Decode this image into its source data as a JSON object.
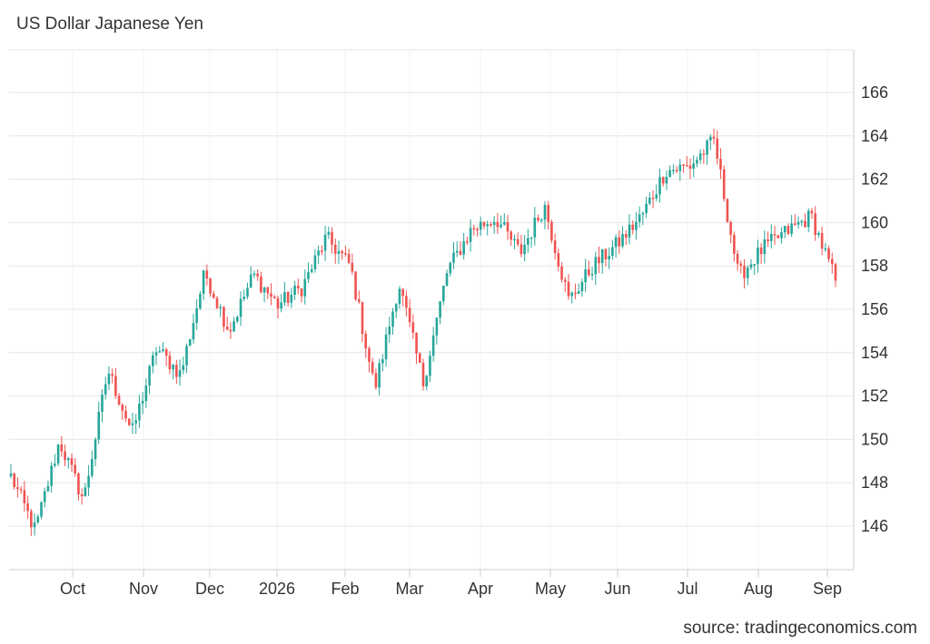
{
  "title": "US Dollar Japanese Yen",
  "source": "source: tradingeconomics.com",
  "colors": {
    "up": "#26a69a",
    "down": "#ef5350",
    "grid": "#e6e6e6",
    "axis": "#cccccc"
  },
  "chart_data": {
    "type": "candlestick",
    "title": "US Dollar Japanese Yen",
    "y_ticks": [
      "146",
      "148",
      "150",
      "152",
      "154",
      "156",
      "158",
      "160",
      "162",
      "164",
      "166"
    ],
    "ylim": [
      143.9,
      167.6
    ],
    "x_ticks": [
      "Oct",
      "Nov",
      "Dec",
      "2026",
      "Feb",
      "Mar",
      "Apr",
      "May",
      "Jun",
      "Jul",
      "Aug",
      "Sep"
    ],
    "grid": true,
    "key_levels": [
      {
        "date": "start",
        "close": 148.3
      },
      {
        "date": "late Sep",
        "close": 145.8
      },
      {
        "date": "early Oct",
        "close": 149.9
      },
      {
        "date": "Oct",
        "close": 147.2
      },
      {
        "date": "mid Oct",
        "close": 153.2
      },
      {
        "date": "late Oct",
        "close": 150.3
      },
      {
        "date": "Nov",
        "close": 154.2
      },
      {
        "date": "Nov",
        "close": 153.0
      },
      {
        "date": "late Nov",
        "close": 157.7
      },
      {
        "date": "Dec",
        "close": 155.0
      },
      {
        "date": "Dec",
        "close": 157.6
      },
      {
        "date": "late Dec",
        "close": 156.2
      },
      {
        "date": "Jan",
        "close": 157.0
      },
      {
        "date": "mid Jan",
        "close": 159.3
      },
      {
        "date": "Jan",
        "close": 158.0
      },
      {
        "date": "late Jan",
        "close": 152.3
      },
      {
        "date": "early Feb",
        "close": 157.2
      },
      {
        "date": "mid Feb",
        "close": 152.6
      },
      {
        "date": "Mar",
        "close": 157.8
      },
      {
        "date": "Mar",
        "close": 159.7
      },
      {
        "date": "Apr",
        "close": 160.2
      },
      {
        "date": "Apr",
        "close": 158.6
      },
      {
        "date": "late Apr",
        "close": 160.8
      },
      {
        "date": "May",
        "close": 156.4
      },
      {
        "date": "May",
        "close": 158.0
      },
      {
        "date": "Jun",
        "close": 159.0
      },
      {
        "date": "Jun",
        "close": 160.3
      },
      {
        "date": "Jul",
        "close": 162.4
      },
      {
        "date": "Jul",
        "close": 162.6
      },
      {
        "date": "late Jul",
        "close": 163.8
      },
      {
        "date": "Aug",
        "close": 157.5
      },
      {
        "date": "Aug",
        "close": 158.8
      },
      {
        "date": "Aug",
        "close": 159.6
      },
      {
        "date": "Sep",
        "close": 160.3
      },
      {
        "date": "Sep",
        "close": 157.3
      }
    ]
  }
}
